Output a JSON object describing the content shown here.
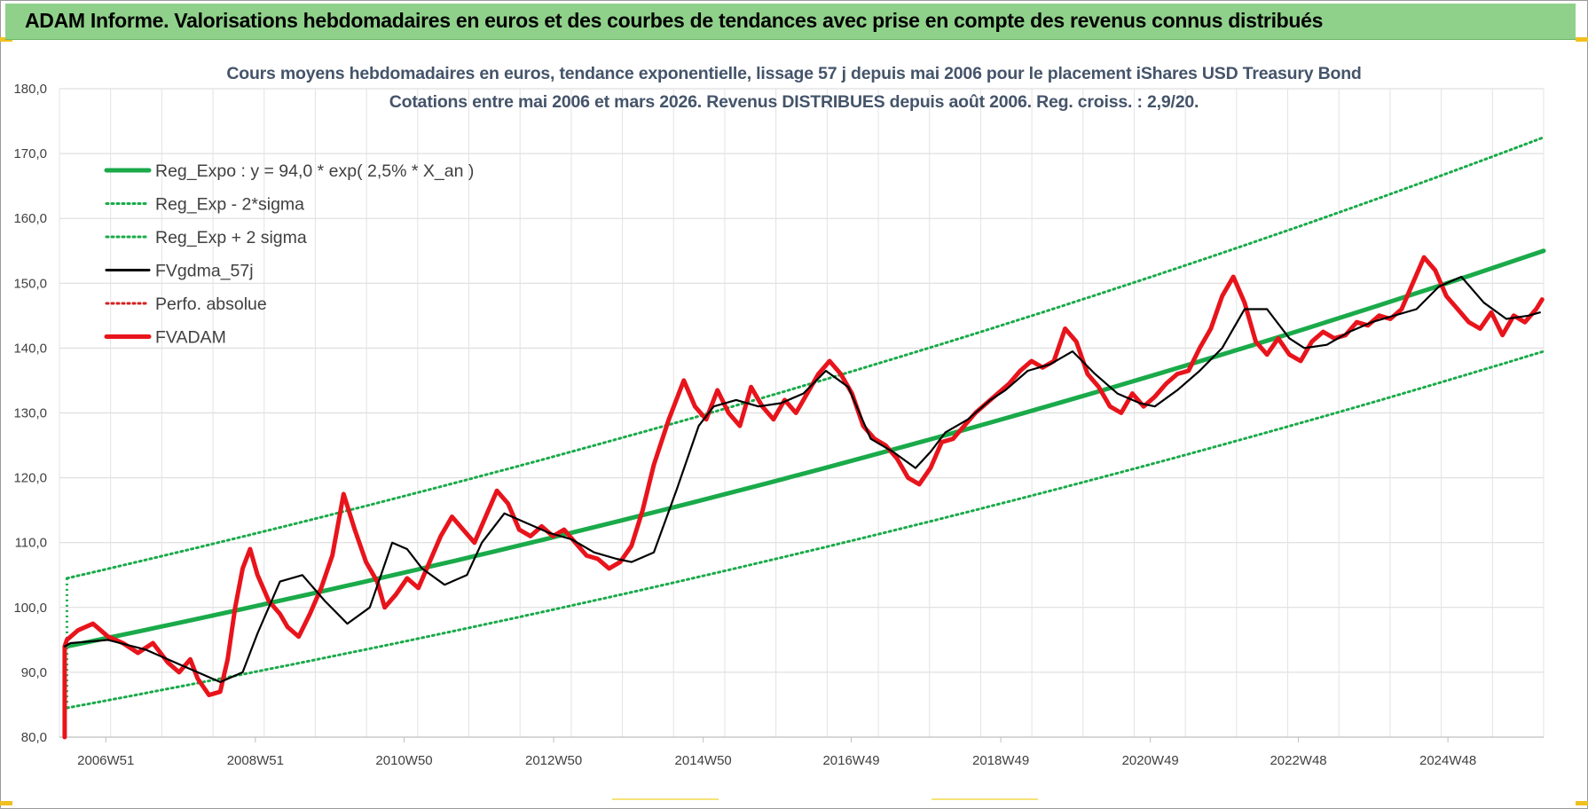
{
  "header": {
    "banner": "ADAM Informe. Valorisations hebdomadaires en euros et des courbes de tendances avec prise en compte des revenus connus distribués"
  },
  "chart_data": {
    "type": "line",
    "title": "Cours moyens hebdomadaires en euros, tendance exponentielle, lissage 57 j depuis mai 2006 pour le placement iShares USD Treasury Bond",
    "subtitle": "Cotations entre mai 2006 et mars 2026.  Revenus DISTRIBUES depuis août 2006. Reg. croiss. : 2,9/20.",
    "ylim": [
      80,
      180
    ],
    "y_ticks": [
      "80,0",
      "90,0",
      "100,0",
      "110,0",
      "120,0",
      "130,0",
      "140,0",
      "150,0",
      "160,0",
      "170,0",
      "180,0"
    ],
    "xlim": [
      2006.35,
      2026.2
    ],
    "x_ticks": [
      {
        "label": "2006W51",
        "x": 2006.97
      },
      {
        "label": "2008W51",
        "x": 2008.97
      },
      {
        "label": "2010W50",
        "x": 2010.96
      },
      {
        "label": "2012W50",
        "x": 2012.96
      },
      {
        "label": "2014W50",
        "x": 2014.96
      },
      {
        "label": "2016W49",
        "x": 2016.94
      },
      {
        "label": "2018W49",
        "x": 2018.94
      },
      {
        "label": "2020W49",
        "x": 2020.94
      },
      {
        "label": "2022W48",
        "x": 2022.92
      },
      {
        "label": "2024W48",
        "x": 2024.92
      }
    ],
    "grid": true,
    "legend_position": "top-left",
    "series": [
      {
        "name": "Reg_Expo : y = 94,0 * exp( 2,5% *  X_an )",
        "color": "#1aaa4a",
        "style": "solid-thick",
        "x": [
          2006.45,
          2026.2
        ],
        "y": [
          94.0,
          155.0
        ]
      },
      {
        "name": "Reg_Exp - 2*sigma",
        "color": "#1aaa4a",
        "style": "dotted",
        "x": [
          2006.45,
          2026.2
        ],
        "y": [
          84.5,
          139.5
        ]
      },
      {
        "name": "Reg_Exp + 2 sigma",
        "color": "#1aaa4a",
        "style": "dotted",
        "x": [
          2006.45,
          2026.2
        ],
        "y": [
          104.5,
          172.5
        ]
      },
      {
        "name": "FVgdma_57j",
        "color": "#000000",
        "style": "solid",
        "x": [
          2006.42,
          2006.5,
          2007.0,
          2007.5,
          2008.0,
          2008.2,
          2008.5,
          2008.8,
          2009.0,
          2009.3,
          2009.6,
          2009.9,
          2010.2,
          2010.5,
          2010.8,
          2011.0,
          2011.2,
          2011.5,
          2011.8,
          2012.0,
          2012.3,
          2012.6,
          2012.9,
          2013.2,
          2013.5,
          2013.8,
          2014.0,
          2014.3,
          2014.6,
          2014.9,
          2015.1,
          2015.4,
          2015.7,
          2016.0,
          2016.3,
          2016.6,
          2016.9,
          2017.2,
          2017.5,
          2017.8,
          2018.0,
          2018.2,
          2018.5,
          2018.8,
          2019.0,
          2019.3,
          2019.6,
          2019.9,
          2020.2,
          2020.5,
          2020.8,
          2021.0,
          2021.3,
          2021.6,
          2021.9,
          2022.2,
          2022.5,
          2022.8,
          2023.0,
          2023.3,
          2023.6,
          2023.9,
          2024.2,
          2024.5,
          2024.8,
          2025.1,
          2025.4,
          2025.7,
          2026.0,
          2026.15
        ],
        "y": [
          94.0,
          94.5,
          95.0,
          93.5,
          91.0,
          90.0,
          88.5,
          90.0,
          96.0,
          104.0,
          105.0,
          101.0,
          97.5,
          100.0,
          110.0,
          109.0,
          106.0,
          103.5,
          105.0,
          110.0,
          114.5,
          113.0,
          111.5,
          110.5,
          108.5,
          107.5,
          107.0,
          108.5,
          118.0,
          128.0,
          131.0,
          132.0,
          131.0,
          131.5,
          133.0,
          136.5,
          134.0,
          126.0,
          124.0,
          121.5,
          124.0,
          127.0,
          129.0,
          132.0,
          133.5,
          136.5,
          137.5,
          139.5,
          136.0,
          133.0,
          131.5,
          131.0,
          133.5,
          136.5,
          140.0,
          146.0,
          146.0,
          141.5,
          140.0,
          140.5,
          142.5,
          144.0,
          145.0,
          146.0,
          149.5,
          151.0,
          147.0,
          144.5,
          145.0,
          145.5
        ]
      },
      {
        "name": "Perfo. absolue",
        "color": "#d42020",
        "style": "dotted",
        "x": [],
        "y": []
      },
      {
        "name": "FVADAM",
        "color": "#e8141c",
        "style": "solid-thick",
        "x": [
          2006.42,
          2006.42,
          2006.45,
          2006.6,
          2006.8,
          2007.0,
          2007.2,
          2007.4,
          2007.6,
          2007.8,
          2007.95,
          2008.1,
          2008.2,
          2008.35,
          2008.5,
          2008.6,
          2008.7,
          2008.8,
          2008.9,
          2009.0,
          2009.15,
          2009.3,
          2009.4,
          2009.55,
          2009.7,
          2009.85,
          2010.0,
          2010.15,
          2010.3,
          2010.45,
          2010.6,
          2010.7,
          2010.85,
          2011.0,
          2011.15,
          2011.3,
          2011.45,
          2011.6,
          2011.75,
          2011.9,
          2012.05,
          2012.2,
          2012.35,
          2012.5,
          2012.65,
          2012.8,
          2012.95,
          2013.1,
          2013.25,
          2013.4,
          2013.55,
          2013.7,
          2013.85,
          2014.0,
          2014.15,
          2014.3,
          2014.5,
          2014.7,
          2014.85,
          2015.0,
          2015.15,
          2015.3,
          2015.45,
          2015.6,
          2015.75,
          2015.9,
          2016.05,
          2016.2,
          2016.35,
          2016.5,
          2016.65,
          2016.8,
          2016.95,
          2017.1,
          2017.25,
          2017.4,
          2017.55,
          2017.7,
          2017.85,
          2018.0,
          2018.15,
          2018.3,
          2018.45,
          2018.6,
          2018.75,
          2018.9,
          2019.05,
          2019.2,
          2019.35,
          2019.5,
          2019.65,
          2019.8,
          2019.95,
          2020.1,
          2020.25,
          2020.4,
          2020.55,
          2020.7,
          2020.85,
          2021.0,
          2021.15,
          2021.3,
          2021.45,
          2021.6,
          2021.75,
          2021.9,
          2022.05,
          2022.2,
          2022.35,
          2022.5,
          2022.65,
          2022.8,
          2022.95,
          2023.1,
          2023.25,
          2023.4,
          2023.55,
          2023.7,
          2023.85,
          2024.0,
          2024.15,
          2024.3,
          2024.45,
          2024.6,
          2024.75,
          2024.9,
          2025.05,
          2025.2,
          2025.35,
          2025.5,
          2025.65,
          2025.8,
          2025.95,
          2026.1,
          2026.18
        ],
        "y": [
          80.0,
          94.0,
          95.0,
          96.5,
          97.5,
          95.5,
          94.5,
          93.0,
          94.5,
          91.5,
          90.0,
          92.0,
          89.0,
          86.5,
          87.0,
          92.0,
          100.0,
          106.0,
          109.0,
          105.0,
          101.0,
          99.0,
          97.0,
          95.5,
          99.0,
          103.0,
          108.0,
          117.5,
          112.0,
          107.0,
          104.0,
          100.0,
          102.0,
          104.5,
          103.0,
          107.0,
          111.0,
          114.0,
          112.0,
          110.0,
          114.0,
          118.0,
          116.0,
          112.0,
          111.0,
          112.5,
          111.0,
          112.0,
          110.0,
          108.0,
          107.5,
          106.0,
          107.0,
          109.5,
          115.0,
          122.0,
          129.0,
          135.0,
          131.0,
          129.0,
          133.5,
          130.0,
          128.0,
          134.0,
          131.0,
          129.0,
          132.0,
          130.0,
          133.0,
          136.0,
          138.0,
          136.0,
          133.0,
          128.0,
          126.0,
          125.0,
          123.0,
          120.0,
          119.0,
          121.5,
          125.5,
          126.0,
          128.0,
          130.0,
          131.5,
          133.0,
          134.5,
          136.5,
          138.0,
          137.0,
          138.0,
          143.0,
          141.0,
          136.0,
          134.0,
          131.0,
          130.0,
          133.0,
          131.0,
          132.5,
          134.5,
          136.0,
          136.5,
          140.0,
          143.0,
          148.0,
          151.0,
          147.0,
          141.0,
          139.0,
          141.5,
          139.0,
          138.0,
          141.0,
          142.5,
          141.5,
          142.0,
          144.0,
          143.5,
          145.0,
          144.5,
          146.0,
          150.0,
          154.0,
          152.0,
          148.0,
          146.0,
          144.0,
          143.0,
          145.5,
          142.0,
          145.0,
          144.0,
          146.0,
          147.5
        ]
      }
    ]
  }
}
